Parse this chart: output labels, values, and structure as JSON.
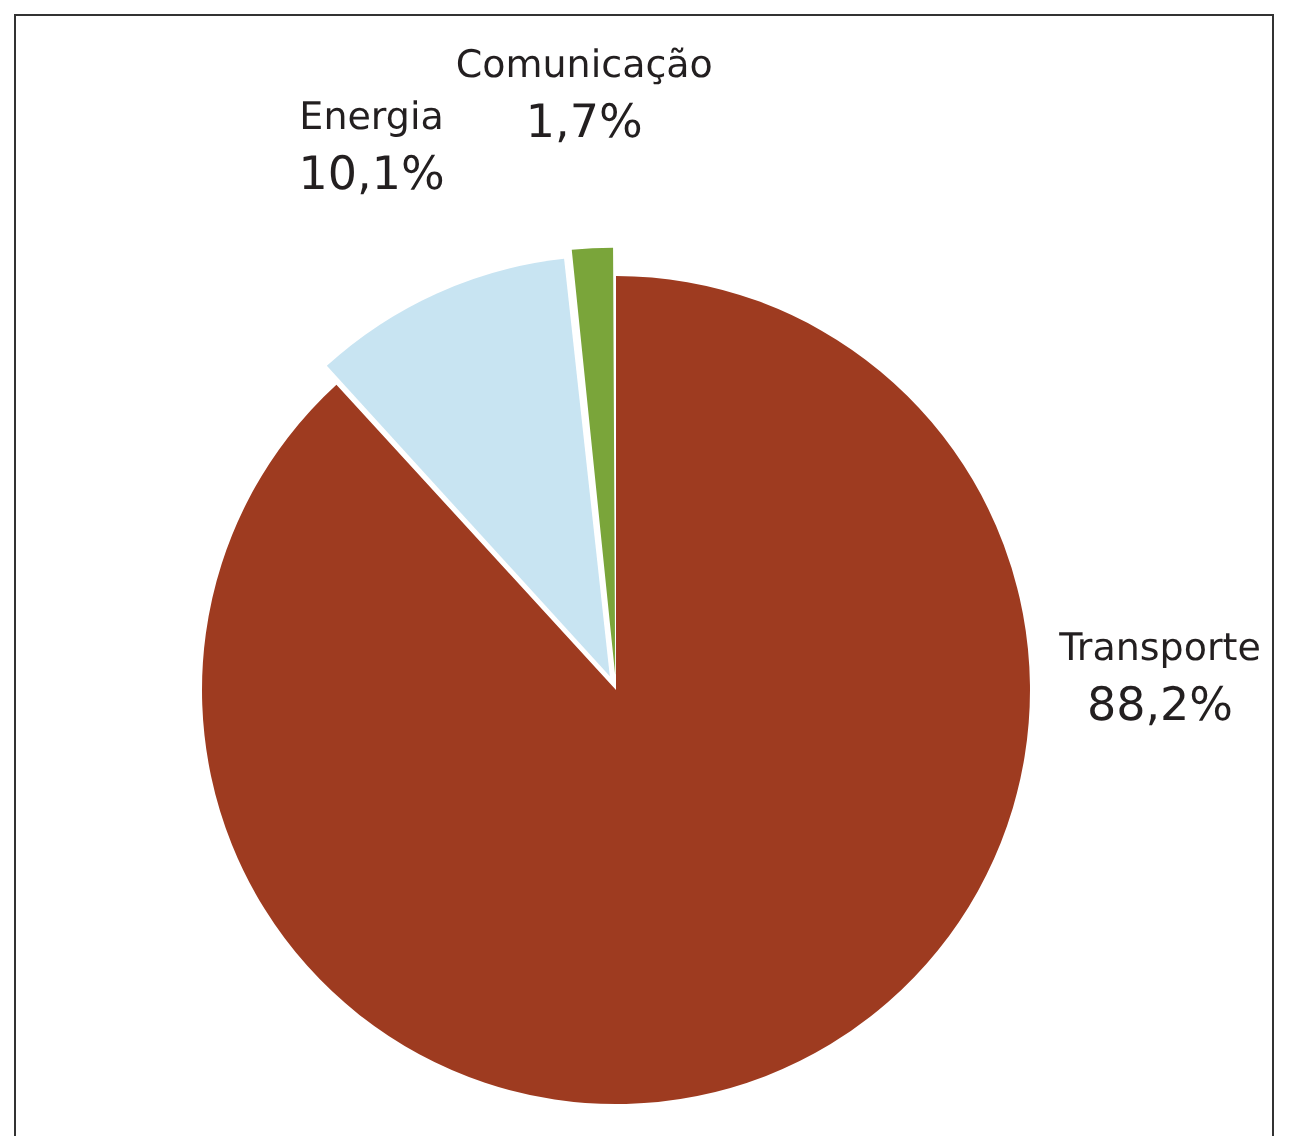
{
  "chart_data": {
    "type": "pie",
    "categories": [
      "Transporte",
      "Energia",
      "Comunicação"
    ],
    "values": [
      88.2,
      10.1,
      1.7
    ],
    "colors": [
      "#9e3b20",
      "#c8e4f2",
      "#7aa53a"
    ],
    "value_labels": [
      "88,2%",
      "10,1%",
      "1,7%"
    ],
    "legend": false
  }
}
